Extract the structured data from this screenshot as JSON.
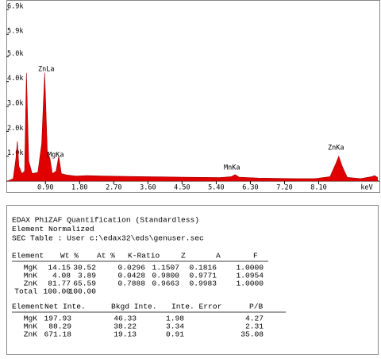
{
  "chart_data": {
    "type": "area",
    "xlabel": "keV",
    "x": [
      -0.1,
      0.05,
      0.12,
      0.16,
      0.2,
      0.28,
      0.35,
      0.4,
      0.46,
      0.55,
      0.7,
      0.8,
      0.88,
      0.95,
      1.02,
      1.08,
      1.18,
      1.25,
      1.32,
      1.45,
      1.7,
      2.0,
      2.5,
      3.0,
      3.5,
      4.0,
      4.5,
      5.0,
      5.5,
      5.8,
      5.9,
      6.0,
      6.5,
      7.0,
      7.5,
      8.0,
      8.4,
      8.55,
      8.63,
      8.72,
      8.85,
      9.2,
      9.5,
      9.57,
      9.65
    ],
    "values": [
      0,
      100,
      900,
      1600,
      600,
      300,
      400,
      4350,
      800,
      300,
      350,
      1500,
      4350,
      1200,
      900,
      300,
      400,
      1000,
      300,
      250,
      200,
      220,
      200,
      190,
      180,
      170,
      160,
      150,
      140,
      180,
      260,
      160,
      120,
      110,
      100,
      100,
      180,
      700,
      1000,
      600,
      150,
      100,
      180,
      220,
      150
    ],
    "color": "#e00000",
    "xlim": [
      -0.13,
      9.7
    ],
    "ylim": [
      0,
      7280
    ],
    "xticks": [
      {
        "value": 0.9,
        "label": "0.90"
      },
      {
        "value": 1.8,
        "label": "1.80"
      },
      {
        "value": 2.7,
        "label": "2.70"
      },
      {
        "value": 3.6,
        "label": "3.60"
      },
      {
        "value": 4.5,
        "label": "4.50"
      },
      {
        "value": 5.4,
        "label": "5.40"
      },
      {
        "value": 6.3,
        "label": "6.30"
      },
      {
        "value": 7.2,
        "label": "7.20"
      },
      {
        "value": 8.1,
        "label": "8.10"
      }
    ],
    "yticks": [
      {
        "value": 1000,
        "label": "1.0k"
      },
      {
        "value": 2000,
        "label": "2.0k"
      },
      {
        "value": 3000,
        "label": "3.0k"
      },
      {
        "value": 4000,
        "label": "4.0k"
      },
      {
        "value": 5000,
        "label": "5.0k"
      },
      {
        "value": 5900,
        "label": "5.9k"
      },
      {
        "value": 6900,
        "label": "6.9k"
      }
    ],
    "annotations": [
      "ZnLa",
      "MgKa",
      "MnKa",
      "ZnKa"
    ]
  },
  "report": {
    "lines": [
      "EDAX PhiZAF Quantification (Standardless)",
      "Element Normalized",
      "SEC Table : User   c:\\edax32\\eds\\genuser.sec"
    ],
    "table1": {
      "header": [
        "Element",
        "Wt %",
        "At %",
        "K-Ratio",
        "Z",
        "A",
        "F"
      ],
      "rows": [
        [
          "MgK",
          "14.15",
          "30.52",
          "0.0296",
          "1.1507",
          "0.1816",
          "1.0000"
        ],
        [
          "MnK",
          "4.08",
          "3.89",
          "0.0428",
          "0.9800",
          "0.9771",
          "1.0954"
        ],
        [
          "ZnK",
          "81.77",
          "65.59",
          "0.7888",
          "0.9663",
          "0.9983",
          "1.0000"
        ],
        [
          "Total",
          "100.00",
          "100.00"
        ]
      ]
    },
    "table2": {
      "header": [
        "Element",
        "Net Inte.",
        "Bkgd Inte.",
        "Inte. Error",
        "P/B"
      ],
      "rows": [
        [
          "MgK",
          "197.93",
          "46.33",
          "1.98",
          "4.27"
        ],
        [
          "MnK",
          "88.29",
          "38.22",
          "3.34",
          "2.31"
        ],
        [
          "ZnK",
          "671.18",
          "19.13",
          "0.91",
          "35.08"
        ]
      ]
    }
  }
}
